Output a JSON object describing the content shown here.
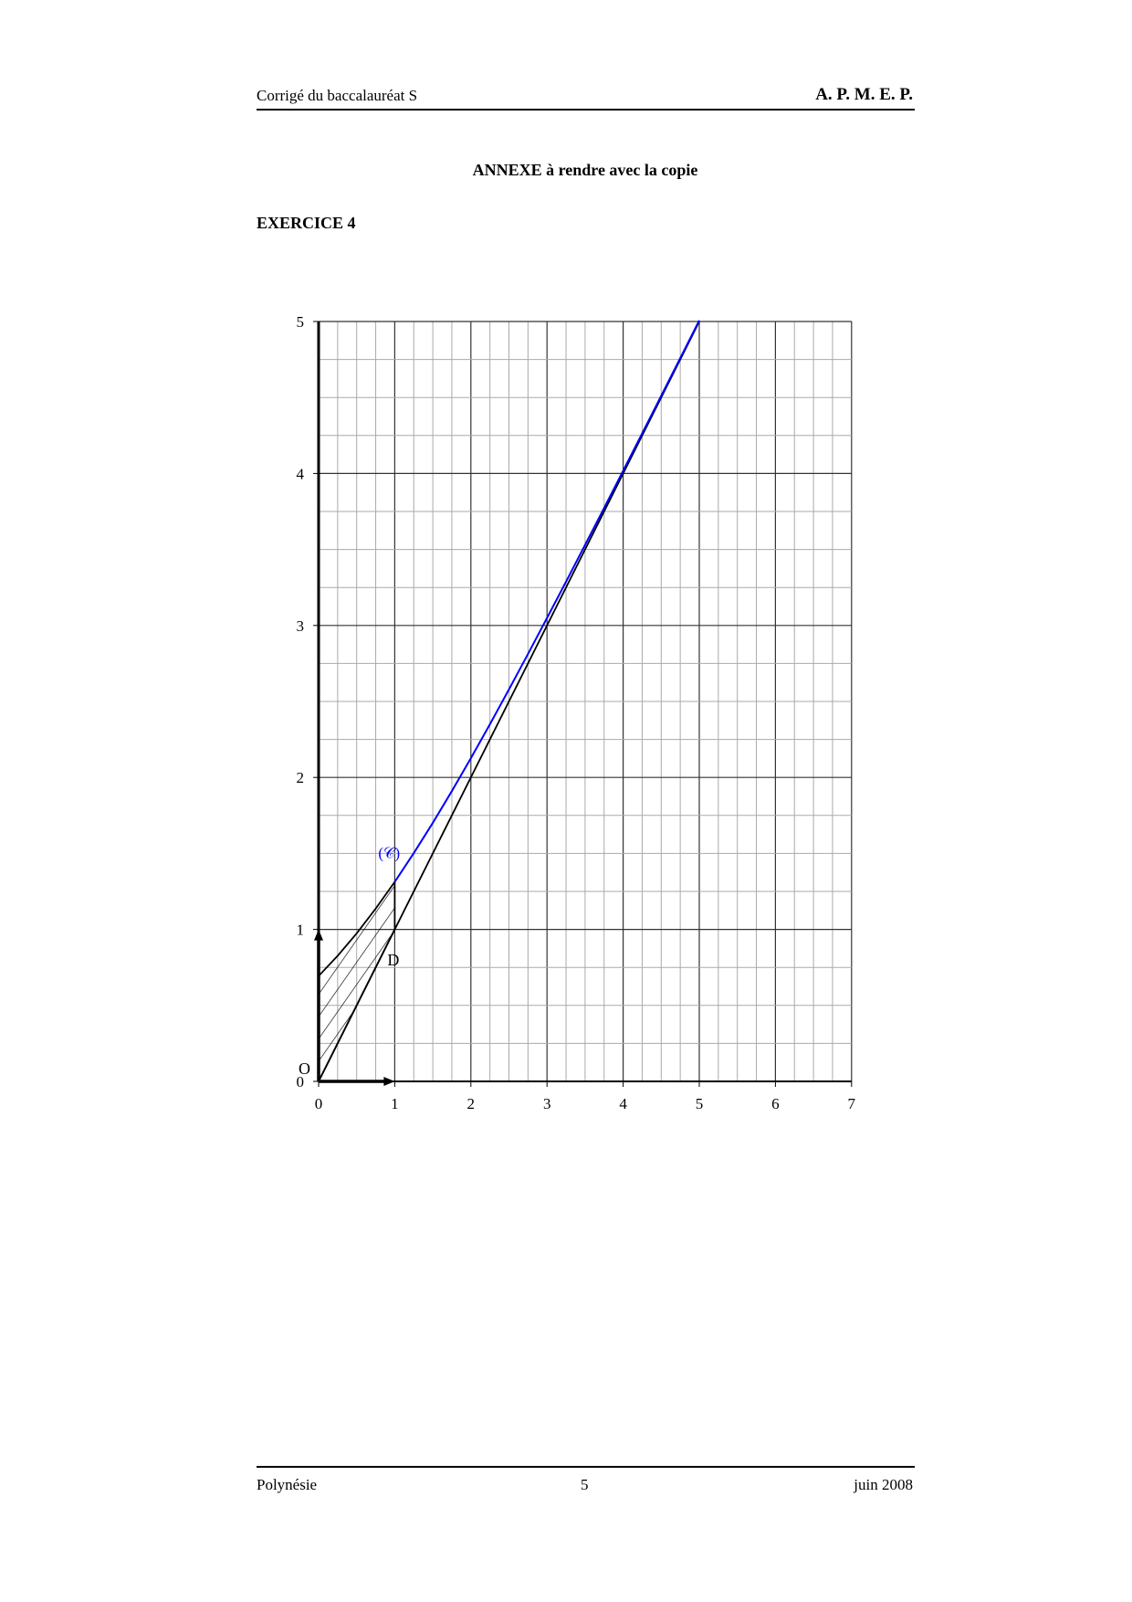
{
  "header": {
    "left": "Corrigé du baccalauréat S",
    "right": "A. P. M. E. P."
  },
  "title": "ANNEXE à rendre avec la copie",
  "exercise": "EXERCICE 4",
  "footer": {
    "left": "Polynésie",
    "center": "5",
    "right": "juin 2008"
  },
  "chart_data": {
    "type": "line",
    "xlim": [
      0,
      7
    ],
    "ylim": [
      0,
      5
    ],
    "xticks": [
      "0",
      "1",
      "2",
      "3",
      "4",
      "5",
      "6",
      "7"
    ],
    "yticks": [
      "0",
      "1",
      "2",
      "3",
      "4",
      "5"
    ],
    "grid": true,
    "minor_grid_step": 0.25,
    "origin_label": "O",
    "series": [
      {
        "name": "D",
        "color": "#000000",
        "x": [
          0,
          5
        ],
        "y": [
          0,
          5
        ]
      },
      {
        "name": "(𝒞)",
        "color": "#0000ff",
        "x": [
          0,
          0.25,
          0.5,
          0.75,
          1,
          1.25,
          1.5,
          1.75,
          2,
          2.25,
          2.5,
          2.75,
          3,
          3.25,
          3.5,
          3.75,
          4,
          4.25,
          4.5,
          4.75,
          5
        ],
        "y": [
          0.693,
          0.826,
          0.974,
          1.137,
          1.313,
          1.502,
          1.701,
          1.91,
          2.127,
          2.35,
          2.579,
          2.812,
          3.049,
          3.288,
          3.53,
          3.773,
          4.018,
          4.264,
          4.511,
          4.759,
          5.007
        ]
      }
    ],
    "hatched_region": {
      "between": [
        "D",
        "(𝒞)"
      ],
      "x_from": 0,
      "x_to": 1
    }
  }
}
